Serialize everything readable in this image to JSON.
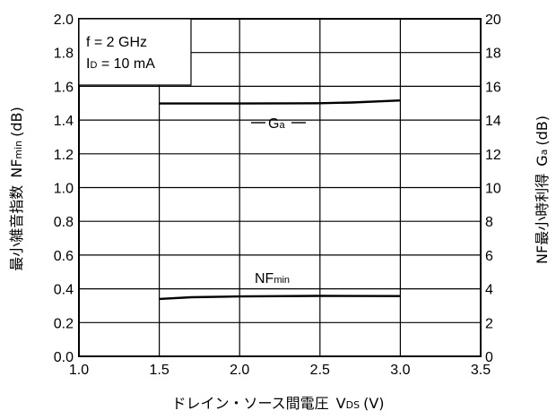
{
  "chart_data": {
    "type": "line",
    "xlim": [
      1.0,
      3.5
    ],
    "x_ticks": [
      "1.0",
      "1.5",
      "2.0",
      "2.5",
      "3.0",
      "3.5"
    ],
    "ylim_left": [
      0.0,
      2.0
    ],
    "y_ticks_left": [
      "0.0",
      "0.2",
      "0.4",
      "0.6",
      "0.8",
      "1.0",
      "1.2",
      "1.4",
      "1.6",
      "1.8",
      "2.0"
    ],
    "ylim_right": [
      0,
      20
    ],
    "y_ticks_right": [
      "0",
      "2",
      "4",
      "6",
      "8",
      "10",
      "12",
      "14",
      "16",
      "18",
      "20"
    ],
    "grid": true,
    "xlabel": {
      "text": "ドレイン・ソース間電圧",
      "var": "V",
      "sub": "DS",
      "unit": "(V)"
    },
    "ylabel_left": {
      "text": "最小雑音指数",
      "var": "NF",
      "sub": "min",
      "unit": "(dB)"
    },
    "ylabel_right": {
      "text": "NF最小時利得",
      "var": "G",
      "sub": "a",
      "unit": "(dB)"
    },
    "conditions": [
      {
        "text": "f = 2 GHz"
      },
      {
        "var": "I",
        "sub": "D",
        "text": " = 10 mA"
      }
    ],
    "series": [
      {
        "name": {
          "var": "G",
          "sub": "a"
        },
        "axis": "right",
        "x": [
          1.5,
          2.0,
          2.3,
          2.5,
          2.7,
          3.0
        ],
        "y": [
          14.98,
          14.98,
          14.99,
          15.0,
          15.04,
          15.16
        ]
      },
      {
        "name": {
          "var": "NF",
          "sub": "min"
        },
        "axis": "left",
        "x": [
          1.5,
          1.7,
          2.0,
          2.5,
          3.0
        ],
        "y": [
          0.34,
          0.35,
          0.355,
          0.358,
          0.357
        ]
      }
    ]
  }
}
